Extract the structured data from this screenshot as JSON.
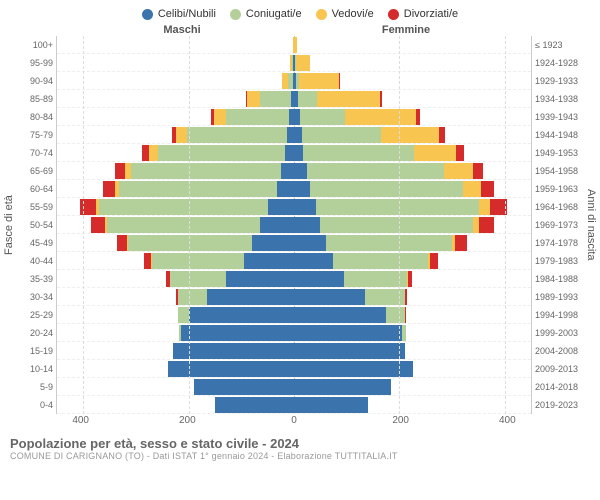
{
  "legend": [
    {
      "label": "Celibi/Nubili",
      "color": "#3b74ad"
    },
    {
      "label": "Coniugati/e",
      "color": "#b3d09a"
    },
    {
      "label": "Vedovi/e",
      "color": "#f9c551"
    },
    {
      "label": "Divorziati/e",
      "color": "#d52b2b"
    }
  ],
  "header": {
    "male": "Maschi",
    "female": "Femmine"
  },
  "yaxis": {
    "left_title": "Fasce di età",
    "right_title": "Anni di nascita"
  },
  "xaxis": {
    "max": 450,
    "ticks": [
      400,
      200,
      0,
      200,
      400
    ]
  },
  "age_labels": [
    "100+",
    "95-99",
    "90-94",
    "85-89",
    "80-84",
    "75-79",
    "70-74",
    "65-69",
    "60-64",
    "55-59",
    "50-54",
    "45-49",
    "40-44",
    "35-39",
    "30-34",
    "25-29",
    "20-24",
    "15-19",
    "10-14",
    "5-9",
    "0-4"
  ],
  "birth_labels": [
    "≤ 1923",
    "1924-1928",
    "1929-1933",
    "1934-1938",
    "1939-1943",
    "1944-1948",
    "1949-1953",
    "1954-1958",
    "1959-1963",
    "1964-1968",
    "1969-1973",
    "1974-1978",
    "1979-1983",
    "1984-1988",
    "1989-1993",
    "1994-1998",
    "1999-2003",
    "2004-2008",
    "2009-2013",
    "2014-2018",
    "2019-2023"
  ],
  "rows": [
    {
      "m": {
        "c": 0,
        "co": 0,
        "v": 2,
        "d": 0
      },
      "f": {
        "c": 0,
        "co": 0,
        "v": 5,
        "d": 0
      }
    },
    {
      "m": {
        "c": 2,
        "co": 1,
        "v": 4,
        "d": 0
      },
      "f": {
        "c": 2,
        "co": 1,
        "v": 28,
        "d": 0
      }
    },
    {
      "m": {
        "c": 2,
        "co": 10,
        "v": 10,
        "d": 1
      },
      "f": {
        "c": 4,
        "co": 6,
        "v": 75,
        "d": 2
      }
    },
    {
      "m": {
        "c": 6,
        "co": 58,
        "v": 25,
        "d": 3
      },
      "f": {
        "c": 8,
        "co": 36,
        "v": 120,
        "d": 4
      }
    },
    {
      "m": {
        "c": 10,
        "co": 120,
        "v": 22,
        "d": 6
      },
      "f": {
        "c": 12,
        "co": 85,
        "v": 135,
        "d": 8
      }
    },
    {
      "m": {
        "c": 14,
        "co": 190,
        "v": 20,
        "d": 8
      },
      "f": {
        "c": 16,
        "co": 150,
        "v": 110,
        "d": 10
      }
    },
    {
      "m": {
        "c": 18,
        "co": 240,
        "v": 18,
        "d": 12
      },
      "f": {
        "c": 18,
        "co": 210,
        "v": 80,
        "d": 14
      }
    },
    {
      "m": {
        "c": 24,
        "co": 285,
        "v": 12,
        "d": 18
      },
      "f": {
        "c": 24,
        "co": 260,
        "v": 55,
        "d": 20
      }
    },
    {
      "m": {
        "c": 32,
        "co": 300,
        "v": 8,
        "d": 22
      },
      "f": {
        "c": 30,
        "co": 290,
        "v": 35,
        "d": 24
      }
    },
    {
      "m": {
        "c": 50,
        "co": 320,
        "v": 6,
        "d": 30
      },
      "f": {
        "c": 42,
        "co": 310,
        "v": 20,
        "d": 32
      }
    },
    {
      "m": {
        "c": 65,
        "co": 290,
        "v": 4,
        "d": 26
      },
      "f": {
        "c": 50,
        "co": 290,
        "v": 12,
        "d": 28
      }
    },
    {
      "m": {
        "c": 80,
        "co": 235,
        "v": 2,
        "d": 20
      },
      "f": {
        "c": 60,
        "co": 240,
        "v": 6,
        "d": 22
      }
    },
    {
      "m": {
        "c": 95,
        "co": 175,
        "v": 1,
        "d": 14
      },
      "f": {
        "c": 75,
        "co": 180,
        "v": 3,
        "d": 15
      }
    },
    {
      "m": {
        "c": 130,
        "co": 105,
        "v": 0,
        "d": 8
      },
      "f": {
        "c": 95,
        "co": 120,
        "v": 1,
        "d": 9
      }
    },
    {
      "m": {
        "c": 165,
        "co": 55,
        "v": 0,
        "d": 4
      },
      "f": {
        "c": 135,
        "co": 75,
        "v": 0,
        "d": 5
      }
    },
    {
      "m": {
        "c": 200,
        "co": 20,
        "v": 0,
        "d": 1
      },
      "f": {
        "c": 175,
        "co": 35,
        "v": 0,
        "d": 2
      }
    },
    {
      "m": {
        "c": 215,
        "co": 3,
        "v": 0,
        "d": 0
      },
      "f": {
        "c": 205,
        "co": 8,
        "v": 0,
        "d": 0
      }
    },
    {
      "m": {
        "c": 230,
        "co": 0,
        "v": 0,
        "d": 0
      },
      "f": {
        "c": 210,
        "co": 0,
        "v": 0,
        "d": 0
      }
    },
    {
      "m": {
        "c": 240,
        "co": 0,
        "v": 0,
        "d": 0
      },
      "f": {
        "c": 225,
        "co": 0,
        "v": 0,
        "d": 0
      }
    },
    {
      "m": {
        "c": 190,
        "co": 0,
        "v": 0,
        "d": 0
      },
      "f": {
        "c": 185,
        "co": 0,
        "v": 0,
        "d": 0
      }
    },
    {
      "m": {
        "c": 150,
        "co": 0,
        "v": 0,
        "d": 0
      },
      "f": {
        "c": 140,
        "co": 0,
        "v": 0,
        "d": 0
      }
    }
  ],
  "footer": {
    "title": "Popolazione per età, sesso e stato civile - 2024",
    "subtitle": "COMUNE DI CARIGNANO (TO) - Dati ISTAT 1° gennaio 2024 - Elaborazione TUTTITALIA.IT"
  }
}
